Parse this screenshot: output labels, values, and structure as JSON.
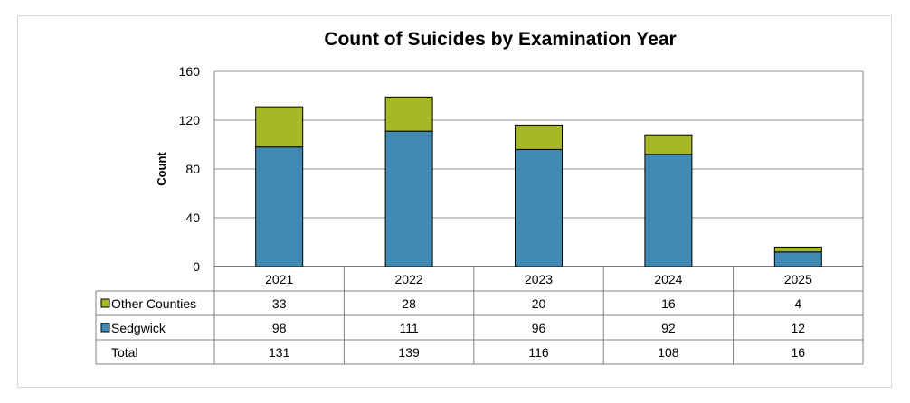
{
  "colors": {
    "sedgwick": "#418AB3",
    "other": "#A6B727",
    "grid": "#8c8c8c",
    "border": "#808080"
  },
  "chart_data": {
    "type": "bar",
    "stacked": true,
    "title": "Count of Suicides by Examination Year",
    "xlabel": "",
    "ylabel": "Count",
    "ylim": [
      0,
      160
    ],
    "yticks": [
      0,
      40,
      80,
      120,
      160
    ],
    "grid": true,
    "legend_placement": "data-table",
    "categories": [
      "2021",
      "2022",
      "2023",
      "2024",
      "2025"
    ],
    "series": [
      {
        "name": "Sedgwick",
        "color": "#418AB3",
        "values": [
          98,
          111,
          96,
          92,
          12
        ]
      },
      {
        "name": "Other Counties",
        "color": "#A6B727",
        "values": [
          33,
          28,
          20,
          16,
          4
        ]
      }
    ],
    "data_table": {
      "rows": [
        {
          "label": "Other Counties",
          "series": "Other Counties",
          "values": [
            "33",
            "28",
            "20",
            "16",
            "4"
          ]
        },
        {
          "label": "Sedgwick",
          "series": "Sedgwick",
          "values": [
            "98",
            "111",
            "96",
            "92",
            "12"
          ]
        },
        {
          "label": "Total",
          "series": null,
          "values": [
            "131",
            "139",
            "116",
            "108",
            "16"
          ]
        }
      ]
    }
  }
}
